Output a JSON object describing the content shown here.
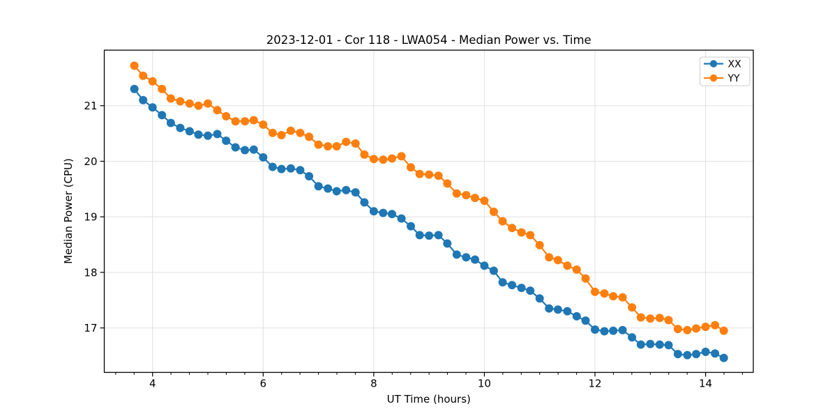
{
  "chart_data": {
    "type": "line",
    "title": "2023-12-01 - Cor 118 - LWA054 - Median Power vs. Time",
    "xlabel": "UT Time (hours)",
    "ylabel": "Median Power (CPU)",
    "xlim": [
      3.127,
      14.863
    ],
    "ylim": [
      16.2,
      22.0
    ],
    "xticks": [
      4,
      6,
      8,
      10,
      12,
      14
    ],
    "yticks": [
      17,
      18,
      19,
      20,
      21
    ],
    "x_minor_step": 0.333333,
    "grid": true,
    "grid_color": "#e0e0e0",
    "spine_color": "#000000",
    "legend": {
      "position": "upper-right",
      "entries": [
        "XX",
        "YY"
      ]
    },
    "x": [
      3.67,
      3.83,
      4.0,
      4.17,
      4.33,
      4.5,
      4.67,
      4.83,
      5.0,
      5.17,
      5.33,
      5.5,
      5.67,
      5.83,
      6.0,
      6.17,
      6.33,
      6.5,
      6.67,
      6.83,
      7.0,
      7.17,
      7.33,
      7.5,
      7.67,
      7.83,
      8.0,
      8.17,
      8.33,
      8.5,
      8.67,
      8.83,
      9.0,
      9.17,
      9.33,
      9.5,
      9.67,
      9.83,
      10.0,
      10.17,
      10.33,
      10.5,
      10.67,
      10.83,
      11.0,
      11.17,
      11.33,
      11.5,
      11.67,
      11.83,
      12.0,
      12.17,
      12.33,
      12.5,
      12.67,
      12.83,
      13.0,
      13.17,
      13.33,
      13.5,
      13.67,
      13.83,
      14.0,
      14.17,
      14.33
    ],
    "series": [
      {
        "name": "XX",
        "color": "#1f77b4",
        "values": [
          21.3,
          21.1,
          20.97,
          20.83,
          20.69,
          20.6,
          20.54,
          20.48,
          20.46,
          20.49,
          20.37,
          20.25,
          20.2,
          20.21,
          20.07,
          19.9,
          19.86,
          19.87,
          19.84,
          19.73,
          19.55,
          19.51,
          19.46,
          19.48,
          19.44,
          19.26,
          19.1,
          19.07,
          19.05,
          18.97,
          18.83,
          18.67,
          18.66,
          18.67,
          18.52,
          18.32,
          18.27,
          18.23,
          18.12,
          18.03,
          17.82,
          17.77,
          17.72,
          17.67,
          17.53,
          17.35,
          17.33,
          17.3,
          17.21,
          17.13,
          16.97,
          16.94,
          16.95,
          16.96,
          16.83,
          16.7,
          16.71,
          16.7,
          16.69,
          16.53,
          16.51,
          16.53,
          16.57,
          16.54,
          16.46
        ]
      },
      {
        "name": "YY",
        "color": "#ff7f0e",
        "values": [
          21.72,
          21.54,
          21.44,
          21.3,
          21.13,
          21.08,
          21.04,
          21.0,
          21.04,
          20.92,
          20.81,
          20.72,
          20.72,
          20.74,
          20.66,
          20.51,
          20.47,
          20.55,
          20.51,
          20.44,
          20.3,
          20.27,
          20.27,
          20.35,
          20.32,
          20.12,
          20.04,
          20.03,
          20.05,
          20.09,
          19.89,
          19.77,
          19.76,
          19.74,
          19.6,
          19.42,
          19.39,
          19.34,
          19.29,
          19.09,
          18.92,
          18.8,
          18.72,
          18.67,
          18.49,
          18.27,
          18.22,
          18.12,
          18.05,
          17.89,
          17.65,
          17.62,
          17.57,
          17.55,
          17.37,
          17.19,
          17.17,
          17.18,
          17.14,
          16.98,
          16.96,
          16.99,
          17.02,
          17.05,
          16.95
        ]
      }
    ]
  }
}
